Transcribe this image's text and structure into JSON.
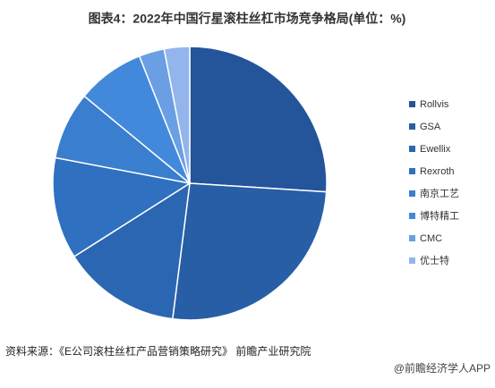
{
  "chart_data": {
    "type": "pie",
    "title": "图表4：2022年中国行星滚柱丝杠市场竞争格局(单位：%)",
    "categories": [
      "Rollvis",
      "GSA",
      "Ewellix",
      "Rexroth",
      "南京工艺",
      "博特精工",
      "CMC",
      "优士特"
    ],
    "values": [
      26,
      26,
      14,
      12,
      8,
      8,
      3,
      3
    ],
    "colors": [
      "#24549a",
      "#285ea6",
      "#2b66b2",
      "#2f70c0",
      "#3a7ecf",
      "#4289dc",
      "#6a9fe3",
      "#93b5ec"
    ],
    "legend": "right",
    "source": "资料来源：《E公司滚柱丝杠产品营销策略研究》 前瞻产业研究院",
    "credit": "@前瞻经济学人APP"
  }
}
